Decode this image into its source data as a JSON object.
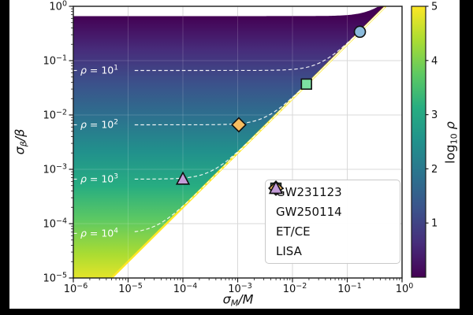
{
  "figure": {
    "background": "#000000",
    "paper": "#ffffff"
  },
  "axes": {
    "xlabel": {
      "sym": "σ",
      "sub": "M",
      "rest": "/M"
    },
    "ylabel": {
      "sym": "σ",
      "sub": "β",
      "rest": "/β"
    },
    "x_tick_exponents": [
      -6,
      -5,
      -4,
      -3,
      -2,
      -1,
      0
    ],
    "y_tick_exponents": [
      0,
      -1,
      -2,
      -3,
      -4,
      -5
    ]
  },
  "colorbar_label": {
    "prefix": "log",
    "sub": "10",
    "sym": "ρ"
  },
  "chart_data": {
    "type": "heatmap",
    "title": "",
    "xlabel": "σ_M/M",
    "ylabel": "σ_β/β",
    "xscale": "log",
    "yscale": "log",
    "xlim": [
      1e-06,
      1
    ],
    "ylim": [
      1e-05,
      1
    ],
    "grid": true,
    "colorbar": {
      "label": "log10 ρ",
      "range": [
        0,
        5
      ],
      "ticks": [
        1,
        2,
        3,
        4,
        5
      ]
    },
    "colormap": {
      "name": "viridis",
      "stops": [
        [
          0.0,
          "#440154"
        ],
        [
          0.125,
          "#472d7b"
        ],
        [
          0.25,
          "#3b528b"
        ],
        [
          0.375,
          "#2c728e"
        ],
        [
          0.5,
          "#21918c"
        ],
        [
          0.625,
          "#27ad81"
        ],
        [
          0.75,
          "#5ec962"
        ],
        [
          0.875,
          "#aadc32"
        ],
        [
          1.0,
          "#fde725"
        ]
      ]
    },
    "region": {
      "description": "colored wedge: log10(rho) from 0 (top, purple) to ~5 (bottom, yellow)",
      "top_level": 0.66,
      "boundary": {
        "relation": "sigma_beta/beta = 2 x sigma_M/M",
        "factor": 2,
        "color": "#fde725"
      }
    },
    "contours": [
      {
        "rho_exp": "1",
        "level": 0.066,
        "label": "ρ = 10^1",
        "label_prefix": "ρ = 10"
      },
      {
        "rho_exp": "2",
        "level": 0.0066,
        "label": "ρ = 10^2",
        "label_prefix": "ρ = 10"
      },
      {
        "rho_exp": "3",
        "level": 0.00066,
        "label": "ρ = 10^3",
        "label_prefix": "ρ = 10"
      },
      {
        "rho_exp": "4",
        "level": 6.6e-05,
        "label": "ρ = 10^4",
        "label_prefix": "ρ = 10"
      }
    ],
    "series": [
      {
        "name": "GW231123",
        "marker": "circle",
        "color": "#8bbbdc",
        "x": 0.17,
        "y": 0.34
      },
      {
        "name": "GW250114",
        "marker": "square",
        "color": "#7ce0a2",
        "x": 0.018,
        "y": 0.037
      },
      {
        "name": "ET/CE",
        "marker": "diamond",
        "color": "#f7bd60",
        "x": 0.00105,
        "y": 0.0066
      },
      {
        "name": "LISA",
        "marker": "triangle",
        "color": "#c49dd8",
        "x": 0.0001,
        "y": 0.00066
      }
    ],
    "legend_position": "lower right"
  }
}
